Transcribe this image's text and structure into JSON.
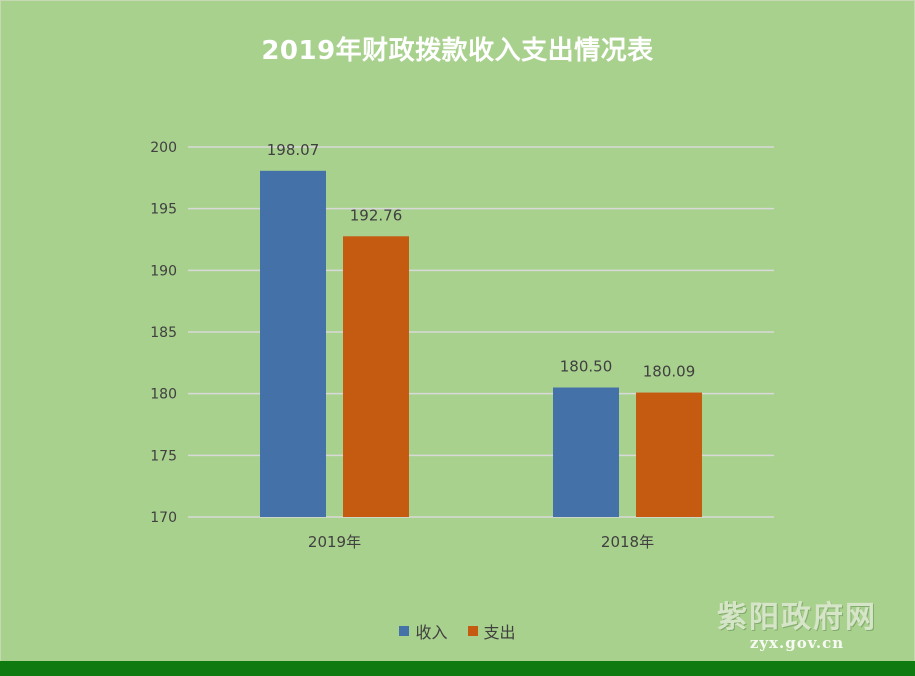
{
  "chart_data": {
    "type": "bar",
    "title": "2019年财政拨款收入支出情况表",
    "categories": [
      "2019年",
      "2018年"
    ],
    "series": [
      {
        "name": "收入",
        "values": [
          198.07,
          180.5
        ],
        "labels": [
          "198.07",
          "180.50"
        ],
        "color": "#4472a8"
      },
      {
        "name": "支出",
        "values": [
          192.76,
          180.09
        ],
        "labels": [
          "192.76",
          "180.09"
        ],
        "color": "#c55a11"
      }
    ],
    "ylim": [
      170,
      200
    ],
    "yticks": [
      "170",
      "175",
      "180",
      "185",
      "190",
      "195",
      "200"
    ],
    "xlabel": "",
    "ylabel": "",
    "grid": true,
    "legend_position": "bottom"
  },
  "watermark": {
    "name": "紫阳政府网",
    "url": "zyx.gov.cn"
  },
  "colors": {
    "background": "#a9d18e",
    "gridline": "#d9d9d9",
    "bottom_bar": "#0f7a0f",
    "title": "#ffffff",
    "text": "#404040"
  }
}
